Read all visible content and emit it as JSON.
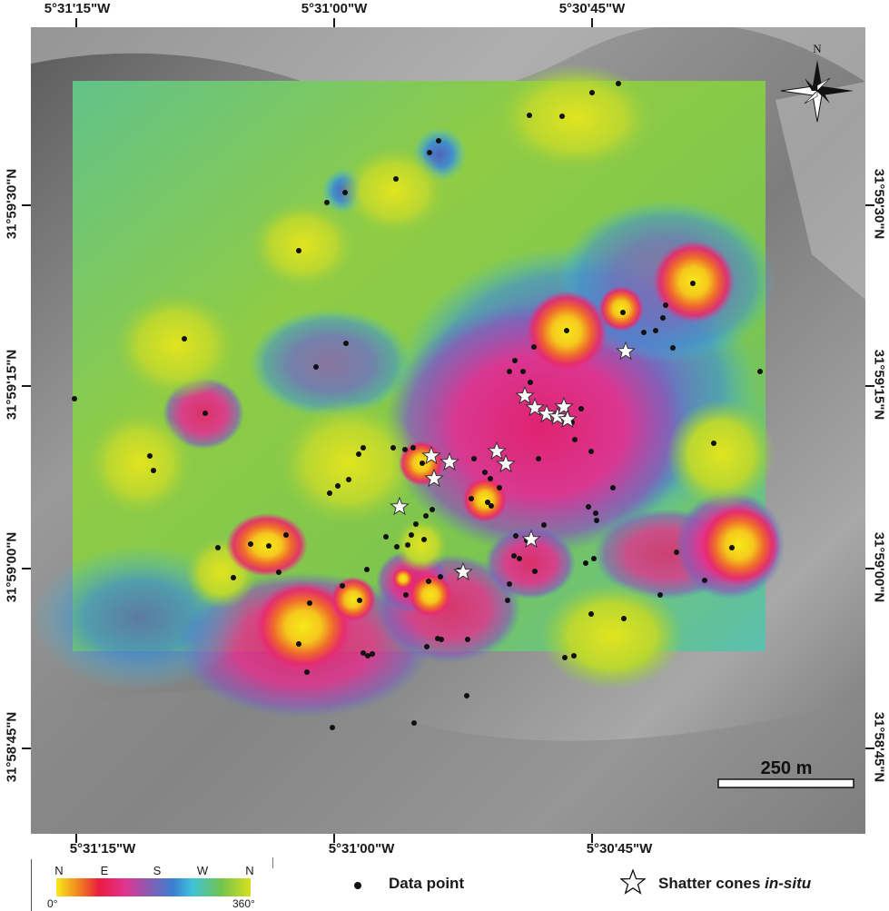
{
  "map": {
    "top_lon_labels": [
      "5°31'15\"W",
      "5°31'00\"W",
      "5°30'45\"W"
    ],
    "bottom_lon_labels": [
      "5°31'15\"W",
      "5°31'00\"W",
      "5°30'45\"W"
    ],
    "left_lat_labels": [
      "31°59'30\"N",
      "31°59'15\"N",
      "31°59'00\"N",
      "31°58'45\"N"
    ],
    "right_lat_labels": [
      "31°59'30\"N",
      "31°59'15\"N",
      "31°59'00\"N",
      "31°58'45\"N"
    ],
    "north_label": "N",
    "scale_bar_label": "250 m",
    "colors": {
      "yellow": "#f5e21a",
      "orange": "#f07f1f",
      "red": "#ea1c3f",
      "magenta": "#e2338f",
      "purple": "#7a63b7",
      "blue": "#3c7fd0",
      "cyan": "#3fc3d8",
      "green": "#73c44e",
      "yellowgreen": "#c9d92e"
    }
  },
  "legend": {
    "colorbar_directions": [
      "N",
      "E",
      "S",
      "W",
      "N"
    ],
    "colorbar_min": "0°",
    "colorbar_max": "360°",
    "data_point_label": "Data point",
    "shatter_label_prefix": "Shatter cones ",
    "shatter_label_italic": "in-situ",
    "data_point_icon": "black-dot",
    "shatter_cone_icon": "star-outline"
  }
}
